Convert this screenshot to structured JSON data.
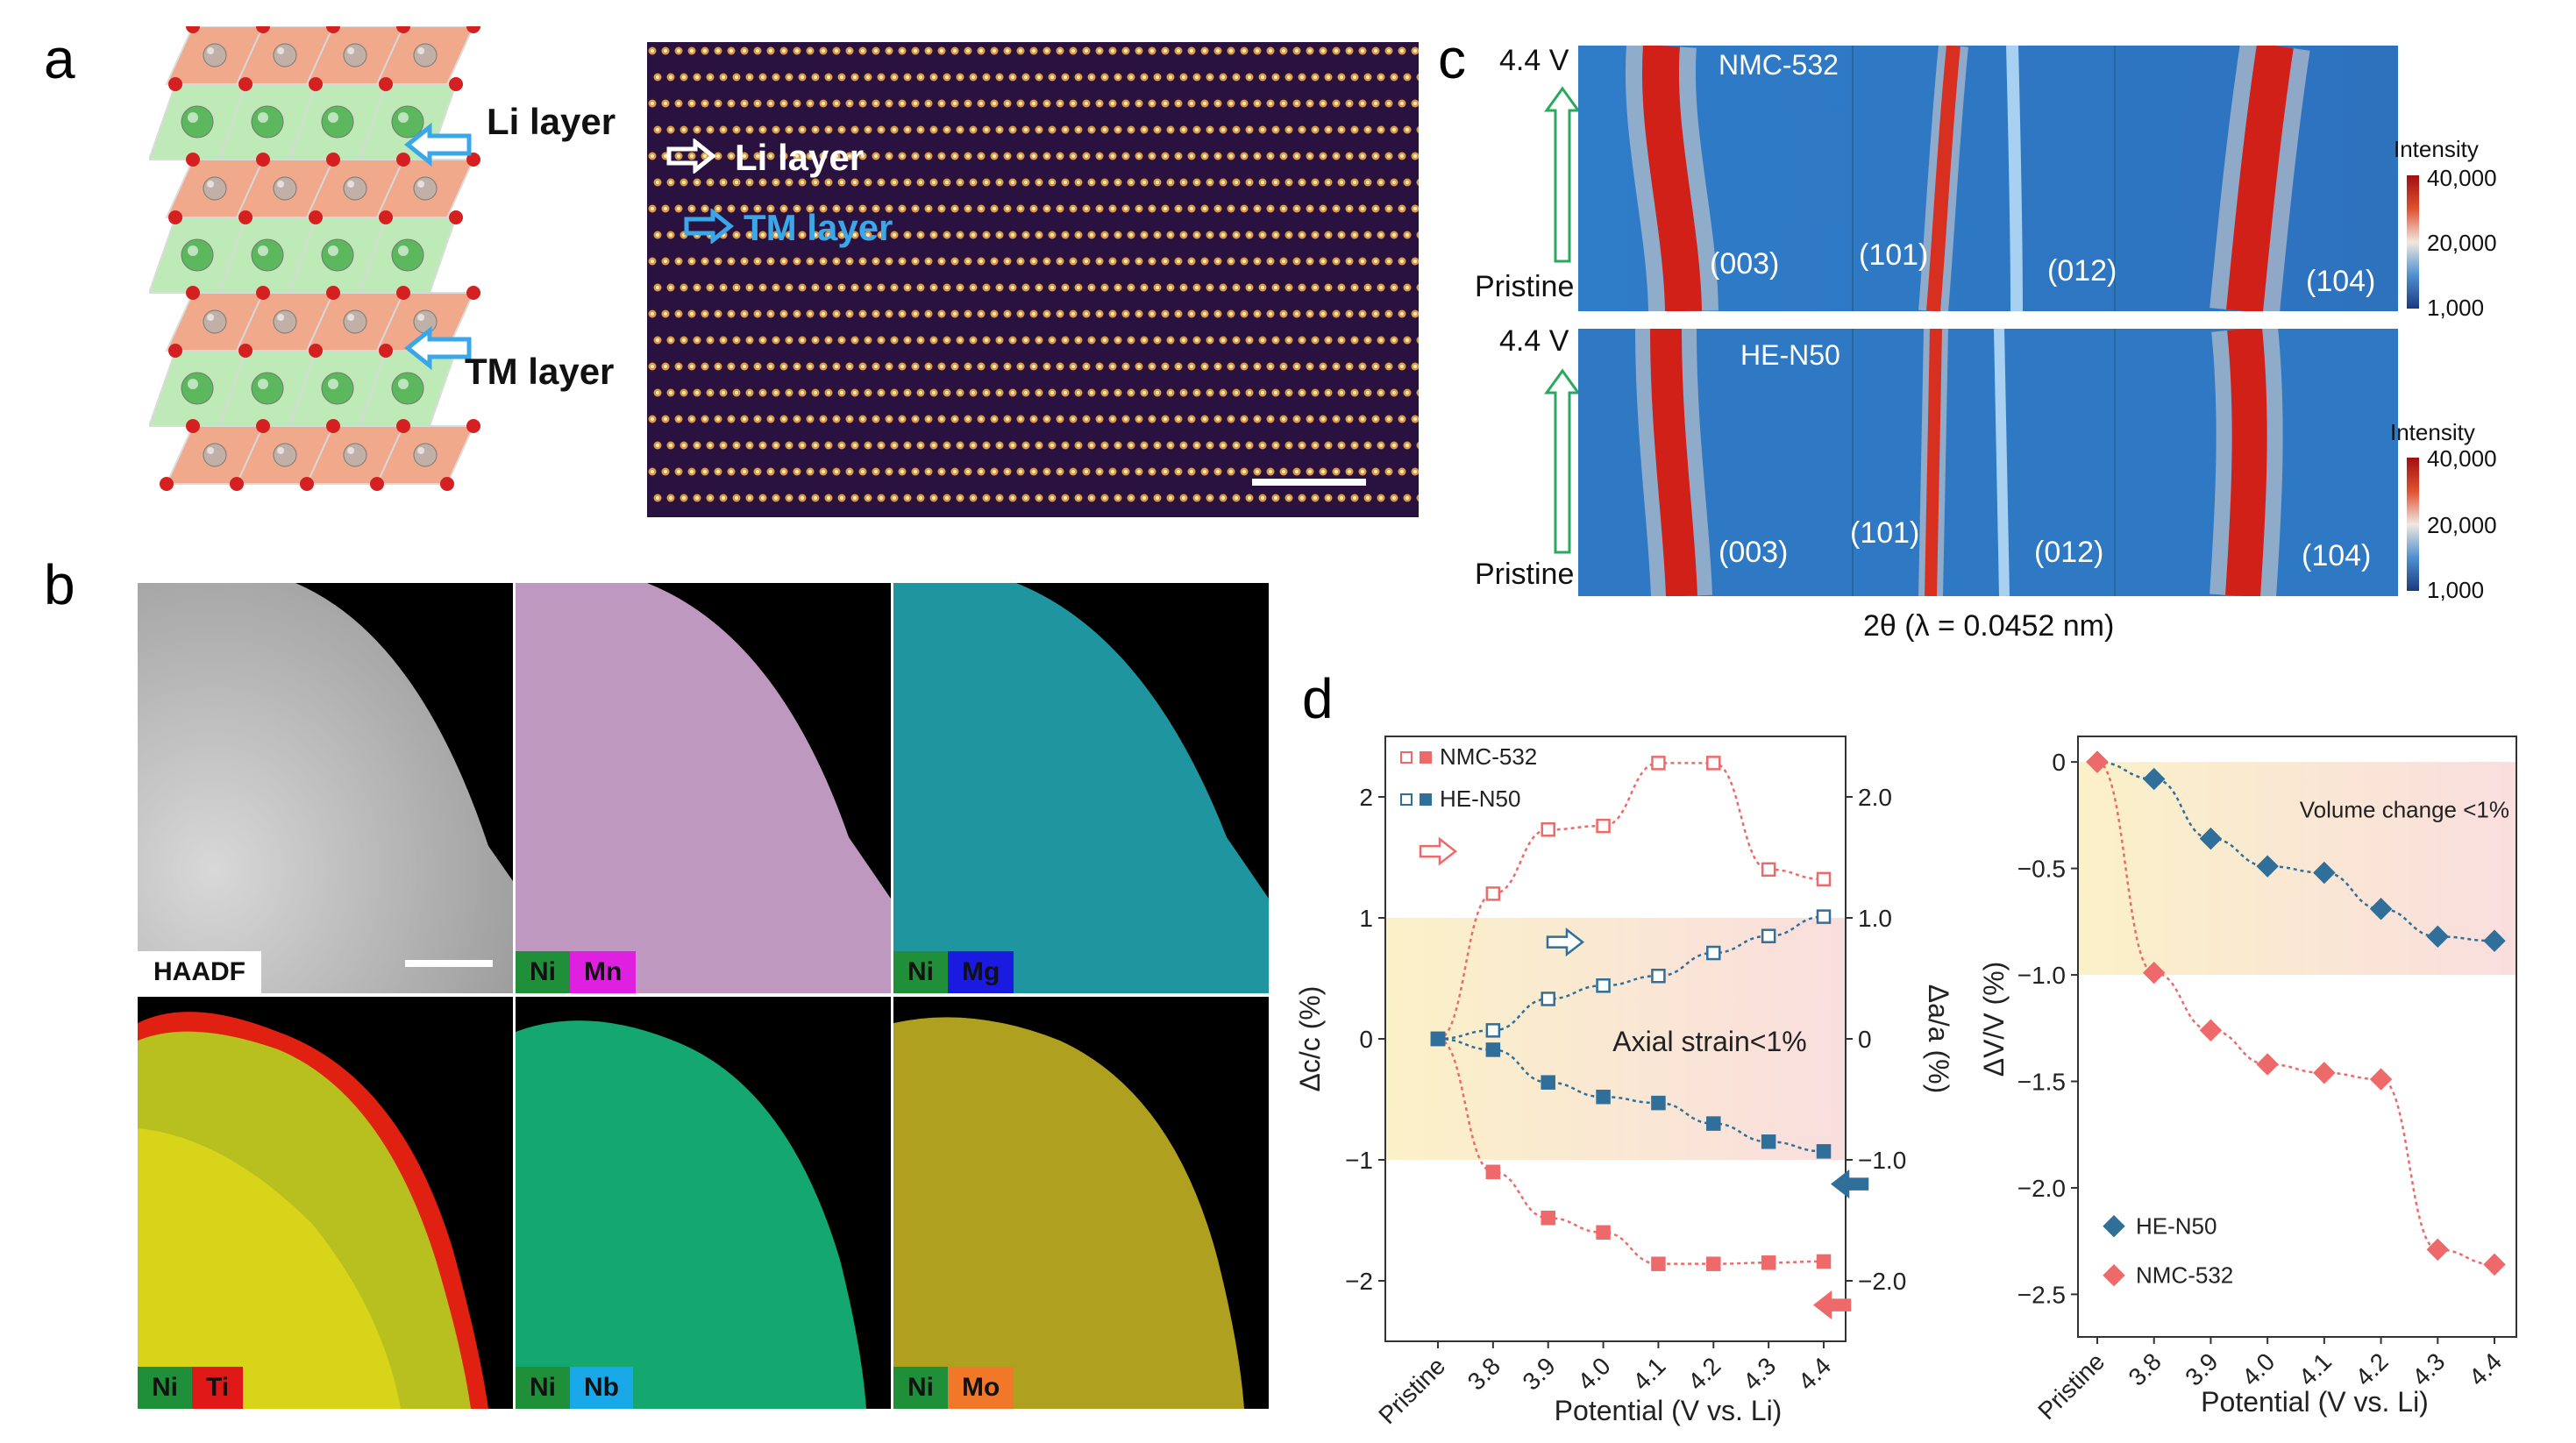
{
  "panel_labels": {
    "a": "a",
    "b": "b",
    "c": "c",
    "d": "d"
  },
  "panel_a": {
    "li_layer_label": "Li layer",
    "tm_layer_label": "TM layer",
    "stem_li_label": "Li layer",
    "stem_tm_label": "TM layer"
  },
  "panel_b": {
    "tiles": [
      {
        "label": "HAADF"
      },
      {
        "el1": "Ni",
        "el2": "Mn",
        "c1": "#1f8f3a",
        "c2": "#e020e0"
      },
      {
        "el1": "Ni",
        "el2": "Mg",
        "c1": "#1f8f3a",
        "c2": "#1a1ae0"
      },
      {
        "el1": "Ni",
        "el2": "Ti",
        "c1": "#1f8f3a",
        "c2": "#e01818"
      },
      {
        "el1": "Ni",
        "el2": "Nb",
        "c1": "#1f8f3a",
        "c2": "#18a8e8"
      },
      {
        "el1": "Ni",
        "el2": "Mo",
        "c1": "#1f8f3a",
        "c2": "#f07828"
      }
    ]
  },
  "panel_c": {
    "top": {
      "sample": "NMC-532",
      "v_top": "4.4 V",
      "v_bottom": "Pristine",
      "peaks": [
        "(003)",
        "(101)",
        "(012)",
        "(104)"
      ]
    },
    "bottom": {
      "sample": "HE-N50",
      "v_top": "4.4 V",
      "v_bottom": "Pristine",
      "peaks": [
        "(003)",
        "(101)",
        "(012)",
        "(104)"
      ]
    },
    "colorbar": {
      "title": "Intensity",
      "ticks": [
        "40,000",
        "20,000",
        "1,000"
      ]
    },
    "xlabel": "2θ (λ = 0.0452 nm)"
  },
  "chart_data": [
    {
      "type": "line",
      "categories": [
        "Pristine",
        "3.8",
        "3.9",
        "4.0",
        "4.1",
        "4.2",
        "4.3",
        "4.4"
      ],
      "xlabel": "Potential (V vs. Li)",
      "ylabel": "Δc/c (%)",
      "y2label": "Δa/a (%)",
      "ylim": [
        -2.5,
        2.5
      ],
      "yticks": [
        "2",
        "1",
        "0",
        "−1",
        "−2"
      ],
      "y2ticks": [
        "2.0",
        "1.0",
        "0",
        "−1.0",
        "−2.0"
      ],
      "annotation": "Axial strain<1%",
      "legend": [
        "NMC-532",
        "HE-N50"
      ],
      "series": [
        {
          "name": "NMC-532",
          "axis": "c",
          "values": [
            0,
            1.2,
            1.73,
            1.76,
            2.28,
            2.28,
            1.4,
            1.32
          ]
        },
        {
          "name": "NMC-532",
          "axis": "a",
          "values": [
            0,
            -1.1,
            -1.48,
            -1.6,
            -1.86,
            -1.86,
            -1.85,
            -1.84
          ]
        },
        {
          "name": "HE-N50",
          "axis": "c",
          "values": [
            0,
            0.07,
            0.33,
            0.44,
            0.52,
            0.71,
            0.85,
            1.01
          ]
        },
        {
          "name": "HE-N50",
          "axis": "a",
          "values": [
            0,
            -0.09,
            -0.36,
            -0.48,
            -0.53,
            -0.7,
            -0.85,
            -0.93
          ]
        }
      ],
      "colors": {
        "NMC-532": "#ee6a6a",
        "HE-N50": "#2f6f9a"
      }
    },
    {
      "type": "line",
      "categories": [
        "Pristine",
        "3.8",
        "3.9",
        "4.0",
        "4.1",
        "4.2",
        "4.3",
        "4.4"
      ],
      "xlabel": "Potential (V vs. Li)",
      "ylabel": "ΔV/V (%)",
      "ylim": [
        -2.7,
        0.12
      ],
      "yticks": [
        "0",
        "−0.5",
        "−1.0",
        "−1.5",
        "−2.0",
        "−2.5"
      ],
      "annotation": "Volume change <1%",
      "series": [
        {
          "name": "HE-N50",
          "values": [
            0,
            -0.08,
            -0.36,
            -0.49,
            -0.52,
            -0.69,
            -0.82,
            -0.84
          ]
        },
        {
          "name": "NMC-532",
          "values": [
            0,
            -0.99,
            -1.26,
            -1.42,
            -1.46,
            -1.49,
            -2.29,
            -2.36
          ]
        }
      ],
      "colors": {
        "HE-N50": "#2f6f9a",
        "NMC-532": "#ee6a6a"
      }
    }
  ]
}
